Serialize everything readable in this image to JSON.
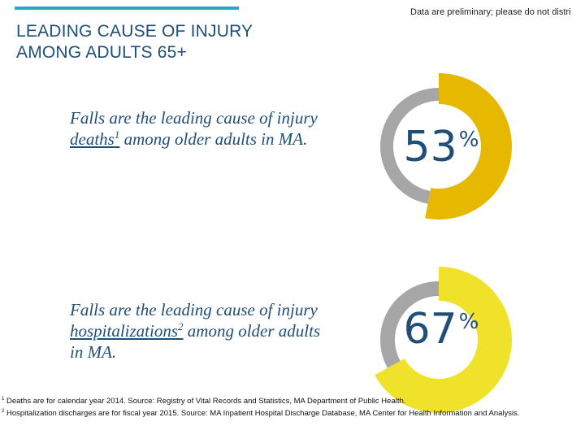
{
  "header": {
    "title_line1": "LEADING CAUSE OF INJURY",
    "title_line2": "AMONG ADULTS 65+",
    "disclaimer": "Data are preliminary; please do not distri"
  },
  "stats": [
    {
      "pre": "Falls are the leading cause of injury ",
      "term": "deaths",
      "sup": "1",
      "post": " among older adults in MA."
    },
    {
      "pre": "Falls are the leading cause of injury ",
      "term": "hospitalizations",
      "sup": "2",
      "post": " among older adults in MA."
    }
  ],
  "chart_data": [
    {
      "type": "pie",
      "variant": "donut",
      "values": [
        53,
        47
      ],
      "label_value": "53",
      "label_unit": "%",
      "colors": {
        "highlight": "#e6b800",
        "remainder": "#a6a6a6"
      }
    },
    {
      "type": "pie",
      "variant": "donut",
      "values": [
        67,
        33
      ],
      "label_value": "67",
      "label_unit": "%",
      "colors": {
        "highlight": "#f0e22a",
        "remainder": "#a6a6a6"
      }
    }
  ],
  "footnotes": [
    {
      "mark": "1",
      "text": "Deaths are for calendar year 2014. Source: Registry of Vital Records and Statistics, MA Department of Public Health."
    },
    {
      "mark": "2",
      "text": "Hospitalization discharges are for fiscal year 2015. Source: MA Inpatient Hospital Discharge Database, MA Center for Health Information and Analysis."
    }
  ]
}
